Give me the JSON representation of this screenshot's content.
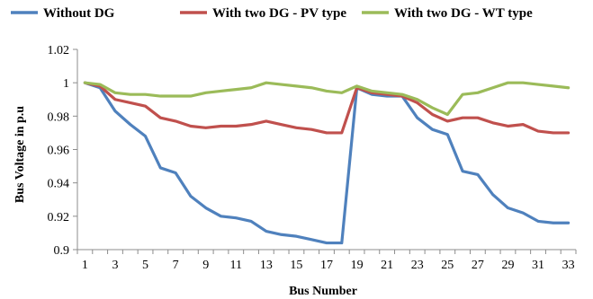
{
  "chart_data": {
    "type": "line",
    "xlabel": "Bus Number",
    "ylabel": "Bus Voltage in p.u",
    "ylim": [
      0.9,
      1.02
    ],
    "yticks": [
      "0.9",
      "0.92",
      "0.94",
      "0.96",
      "0.98",
      "1",
      "1.02"
    ],
    "xticks": [
      "1",
      "3",
      "5",
      "7",
      "9",
      "11",
      "13",
      "15",
      "17",
      "19",
      "21",
      "23",
      "25",
      "27",
      "29",
      "31",
      "33"
    ],
    "grid": false,
    "legend_position": "top",
    "x": [
      1,
      2,
      3,
      4,
      5,
      6,
      7,
      8,
      9,
      10,
      11,
      12,
      13,
      14,
      15,
      16,
      17,
      18,
      19,
      20,
      21,
      22,
      23,
      24,
      25,
      26,
      27,
      28,
      29,
      30,
      31,
      32,
      33
    ],
    "series": [
      {
        "name": "Without DG",
        "color": "#4f81bd",
        "values": [
          1.0,
          0.997,
          0.983,
          0.975,
          0.968,
          0.949,
          0.946,
          0.932,
          0.925,
          0.92,
          0.919,
          0.917,
          0.911,
          0.909,
          0.908,
          0.906,
          0.904,
          0.904,
          0.997,
          0.993,
          0.992,
          0.992,
          0.979,
          0.972,
          0.969,
          0.947,
          0.945,
          0.933,
          0.925,
          0.922,
          0.917,
          0.916,
          0.916
        ]
      },
      {
        "name": "With two DG - PV type",
        "color": "#c0504d",
        "values": [
          1.0,
          0.998,
          0.99,
          0.988,
          0.986,
          0.979,
          0.977,
          0.974,
          0.973,
          0.974,
          0.974,
          0.975,
          0.977,
          0.975,
          0.973,
          0.972,
          0.97,
          0.97,
          0.997,
          0.994,
          0.993,
          0.992,
          0.988,
          0.981,
          0.977,
          0.979,
          0.979,
          0.976,
          0.974,
          0.975,
          0.971,
          0.97,
          0.97
        ]
      },
      {
        "name": "With two DG - WT type",
        "color": "#9bbb59",
        "values": [
          1.0,
          0.999,
          0.994,
          0.993,
          0.993,
          0.992,
          0.992,
          0.992,
          0.994,
          0.995,
          0.996,
          0.997,
          1.0,
          0.999,
          0.998,
          0.997,
          0.995,
          0.994,
          0.998,
          0.995,
          0.994,
          0.993,
          0.99,
          0.985,
          0.981,
          0.993,
          0.994,
          0.997,
          1.0,
          1.0,
          0.999,
          0.998,
          0.997
        ]
      }
    ]
  }
}
